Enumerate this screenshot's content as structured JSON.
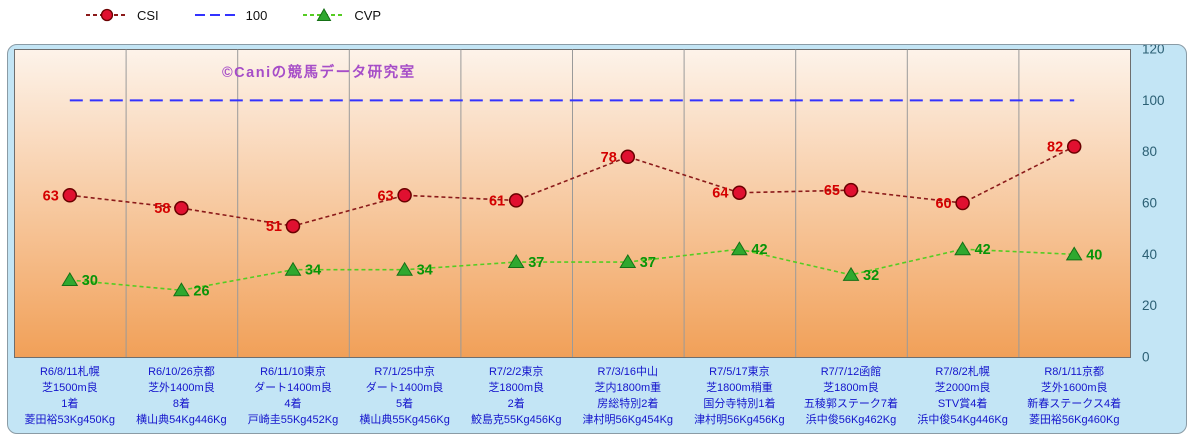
{
  "watermark": "©Caniの競馬データ研究室",
  "legend": [
    {
      "label": "CSI",
      "marker": "circle",
      "line_color": "#8B1A1A",
      "marker_fill": "#E01030",
      "marker_stroke": "#6B0000",
      "dash": "4 3"
    },
    {
      "label": "100",
      "marker": "none",
      "line_color": "#3333FF",
      "dash": "10 5"
    },
    {
      "label": "CVP",
      "marker": "triangle",
      "line_color": "#55CC22",
      "marker_fill": "#2FA82F",
      "marker_stroke": "#157015",
      "dash": "4 3"
    }
  ],
  "chart_data": {
    "type": "line",
    "title": "",
    "xlabel": "",
    "ylabel": "",
    "ylim": [
      0,
      120
    ],
    "yticks": [
      0,
      20,
      40,
      60,
      80,
      100,
      120
    ],
    "grid": "vertical",
    "legend_position": "top",
    "reference_line": {
      "label": "100",
      "value": 100
    },
    "categories": [
      [
        "R6/8/11札幌",
        "芝1500m良",
        "1着",
        "菱田裕53Kg450Kg"
      ],
      [
        "R6/10/26京都",
        "芝外1400m良",
        "8着",
        "横山典54Kg446Kg"
      ],
      [
        "R6/11/10東京",
        "ダート1400m良",
        "4着",
        "戸崎圭55Kg452Kg"
      ],
      [
        "R7/1/25中京",
        "ダート1400m良",
        "5着",
        "横山典55Kg456Kg"
      ],
      [
        "R7/2/2東京",
        "芝1800m良",
        "2着",
        "鮫島克55Kg456Kg"
      ],
      [
        "R7/3/16中山",
        "芝内1800m重",
        "房総特別2着",
        "津村明56Kg454Kg"
      ],
      [
        "R7/5/17東京",
        "芝1800m稍重",
        "国分寺特別1着",
        "津村明56Kg456Kg"
      ],
      [
        "R7/7/12函館",
        "芝1800m良",
        "五稜郭ステーク7着",
        "浜中俊56Kg462Kg"
      ],
      [
        "R7/8/2札幌",
        "芝2000m良",
        "STV賞4着",
        "浜中俊54Kg446Kg"
      ],
      [
        "R8/1/11京都",
        "芝外1600m良",
        "新春ステークス4着",
        "菱田裕56Kg460Kg"
      ]
    ],
    "series": [
      {
        "name": "CSI",
        "values": [
          63,
          58,
          51,
          63,
          61,
          78,
          64,
          65,
          60,
          82
        ]
      },
      {
        "name": "CVP",
        "values": [
          30,
          26,
          34,
          34,
          37,
          37,
          42,
          32,
          42,
          40
        ]
      }
    ]
  },
  "colors": {
    "panel_bg": "#C3E5F5",
    "panel_border": "#8A9BA5",
    "plot_top": "#FDF3EA",
    "plot_bottom": "#F1A058",
    "plot_border": "#6E6E6E",
    "gridline": "#9A9A9A",
    "reference": "#3333FF",
    "csi_line": "#8B1A1A",
    "csi_marker_fill": "#E01030",
    "csi_marker_stroke": "#6B0000",
    "csi_label": "#D40000",
    "cvp_line": "#55CC22",
    "cvp_marker_fill": "#2FA82F",
    "cvp_marker_stroke": "#157015",
    "cvp_label": "#089408",
    "ytick": "#2B5F74",
    "xlabel": "#1414CC",
    "watermark": "#A64DC8"
  }
}
